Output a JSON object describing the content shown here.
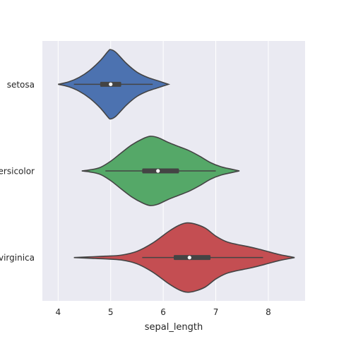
{
  "chart_data": {
    "type": "violin",
    "orientation": "horizontal",
    "xlabel": "sepal_length",
    "ylabel": "",
    "xlim": [
      3.7,
      8.7
    ],
    "xticks": [
      4,
      5,
      6,
      7,
      8
    ],
    "grid": true,
    "categories": [
      "setosa",
      "versicolor",
      "virginica"
    ],
    "colors": [
      "#4c72b0",
      "#55a868",
      "#c44e52"
    ],
    "series": [
      {
        "category": "setosa",
        "min": 4.3,
        "q1": 4.8,
        "median": 5.0,
        "q3": 5.2,
        "max": 5.8,
        "kde_min": 4.0,
        "kde_max": 6.1,
        "density": [
          [
            4.0,
            0.0
          ],
          [
            4.2,
            0.07
          ],
          [
            4.4,
            0.2
          ],
          [
            4.6,
            0.4
          ],
          [
            4.8,
            0.68
          ],
          [
            4.95,
            0.95
          ],
          [
            5.0,
            1.0
          ],
          [
            5.1,
            0.92
          ],
          [
            5.3,
            0.6
          ],
          [
            5.5,
            0.35
          ],
          [
            5.7,
            0.2
          ],
          [
            5.9,
            0.1
          ],
          [
            6.1,
            0.0
          ]
        ]
      },
      {
        "category": "versicolor",
        "min": 4.9,
        "q1": 5.6,
        "median": 5.9,
        "q3": 6.3,
        "max": 7.0,
        "kde_min": 4.45,
        "kde_max": 7.45,
        "density": [
          [
            4.45,
            0.0
          ],
          [
            4.6,
            0.03
          ],
          [
            4.8,
            0.1
          ],
          [
            5.0,
            0.28
          ],
          [
            5.2,
            0.52
          ],
          [
            5.4,
            0.75
          ],
          [
            5.6,
            0.92
          ],
          [
            5.75,
            1.0
          ],
          [
            5.9,
            0.96
          ],
          [
            6.1,
            0.82
          ],
          [
            6.3,
            0.7
          ],
          [
            6.5,
            0.58
          ],
          [
            6.7,
            0.42
          ],
          [
            6.9,
            0.24
          ],
          [
            7.1,
            0.12
          ],
          [
            7.3,
            0.05
          ],
          [
            7.45,
            0.0
          ]
        ]
      },
      {
        "category": "virginica",
        "min": 5.6,
        "q1": 6.2,
        "median": 6.5,
        "q3": 6.9,
        "max": 7.9,
        "kde_min": 4.3,
        "kde_max": 8.5,
        "density": [
          [
            4.3,
            0.0
          ],
          [
            4.6,
            0.02
          ],
          [
            4.9,
            0.04
          ],
          [
            5.2,
            0.07
          ],
          [
            5.5,
            0.18
          ],
          [
            5.8,
            0.42
          ],
          [
            6.1,
            0.75
          ],
          [
            6.3,
            0.93
          ],
          [
            6.45,
            1.0
          ],
          [
            6.6,
            0.97
          ],
          [
            6.8,
            0.85
          ],
          [
            7.0,
            0.62
          ],
          [
            7.2,
            0.46
          ],
          [
            7.4,
            0.38
          ],
          [
            7.6,
            0.32
          ],
          [
            7.8,
            0.25
          ],
          [
            8.0,
            0.17
          ],
          [
            8.2,
            0.09
          ],
          [
            8.4,
            0.03
          ],
          [
            8.5,
            0.0
          ]
        ]
      }
    ]
  }
}
